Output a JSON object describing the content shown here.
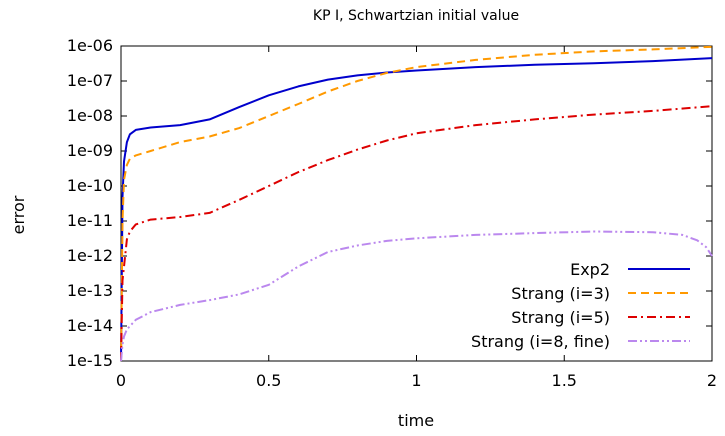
{
  "chart_data": {
    "type": "line",
    "title": "KP I, Schwartzian initial value",
    "xlabel": "time",
    "ylabel": "error",
    "xlim": [
      0,
      2
    ],
    "ylim": [
      1e-15,
      1e-06
    ],
    "yscale": "log",
    "xticks": [
      0,
      0.5,
      1,
      1.5,
      2
    ],
    "xtick_labels": [
      "0",
      "0.5",
      "1",
      "1.5",
      "2"
    ],
    "yticks": [
      1e-15,
      1e-14,
      1e-13,
      1e-12,
      1e-11,
      1e-10,
      1e-09,
      1e-08,
      1e-07,
      1e-06
    ],
    "ytick_labels": [
      "1e-15",
      "1e-14",
      "1e-13",
      "1e-12",
      "1e-11",
      "1e-10",
      "1e-09",
      "1e-08",
      "1e-07",
      "1e-06"
    ],
    "grid": false,
    "legend_position": "bottom-right",
    "series": [
      {
        "name": "Exp2",
        "color": "#0000cc",
        "dash": "solid",
        "x": [
          0.0,
          0.005,
          0.01,
          0.02,
          0.03,
          0.05,
          0.1,
          0.2,
          0.3,
          0.4,
          0.5,
          0.6,
          0.7,
          0.8,
          0.9,
          1.0,
          1.2,
          1.4,
          1.6,
          1.8,
          2.0
        ],
        "y": [
          1e-15,
          5e-11,
          5e-10,
          1.8e-09,
          3e-09,
          4e-09,
          4.7e-09,
          5.5e-09,
          8e-09,
          1.8e-08,
          3.9e-08,
          7e-08,
          1.1e-07,
          1.45e-07,
          1.75e-07,
          2e-07,
          2.5e-07,
          2.9e-07,
          3.2e-07,
          3.7e-07,
          4.5e-07
        ]
      },
      {
        "name": "Strang (i=3)",
        "color": "#ff9900",
        "dash": "dashed",
        "x": [
          0.0,
          0.005,
          0.01,
          0.02,
          0.03,
          0.05,
          0.1,
          0.2,
          0.3,
          0.4,
          0.5,
          0.6,
          0.7,
          0.8,
          0.9,
          1.0,
          1.2,
          1.4,
          1.6,
          1.8,
          2.0
        ],
        "y": [
          1e-15,
          1e-11,
          1.5e-10,
          4e-10,
          6e-10,
          7.5e-10,
          1e-09,
          1.8e-09,
          2.6e-09,
          4.5e-09,
          1e-08,
          2.2e-08,
          5e-08,
          1e-07,
          1.7e-07,
          2.5e-07,
          4e-07,
          5.6e-07,
          7e-07,
          8e-07,
          9.5e-07
        ]
      },
      {
        "name": "Strang (i=5)",
        "color": "#dd0000",
        "dash": "dashdot",
        "x": [
          0.0,
          0.005,
          0.01,
          0.02,
          0.03,
          0.05,
          0.1,
          0.2,
          0.3,
          0.4,
          0.5,
          0.6,
          0.7,
          0.8,
          0.9,
          1.0,
          1.2,
          1.4,
          1.6,
          1.8,
          2.0
        ],
        "y": [
          1e-15,
          2e-13,
          5e-13,
          3e-12,
          5e-12,
          8e-12,
          1.1e-11,
          1.3e-11,
          1.7e-11,
          4e-11,
          1e-10,
          2.5e-10,
          5.5e-10,
          1.1e-09,
          2e-09,
          3.2e-09,
          5.5e-09,
          8e-09,
          1.1e-08,
          1.4e-08,
          1.9e-08
        ]
      },
      {
        "name": "Strang (i=8, fine)",
        "color": "#bb88ee",
        "dash": "dashdotdot",
        "x": [
          0.0,
          0.005,
          0.01,
          0.02,
          0.05,
          0.1,
          0.2,
          0.3,
          0.4,
          0.5,
          0.6,
          0.7,
          0.8,
          0.9,
          1.0,
          1.2,
          1.4,
          1.6,
          1.8,
          1.9,
          1.95,
          1.98,
          2.0
        ],
        "y": [
          1e-15,
          3e-15,
          5e-15,
          8e-15,
          1.5e-14,
          2.5e-14,
          4e-14,
          5.5e-14,
          8e-14,
          1.5e-13,
          5e-13,
          1.3e-12,
          2e-12,
          2.7e-12,
          3.2e-12,
          4e-12,
          4.5e-12,
          5e-12,
          4.8e-12,
          4e-12,
          2.8e-12,
          1.8e-12,
          1e-12
        ]
      }
    ]
  }
}
